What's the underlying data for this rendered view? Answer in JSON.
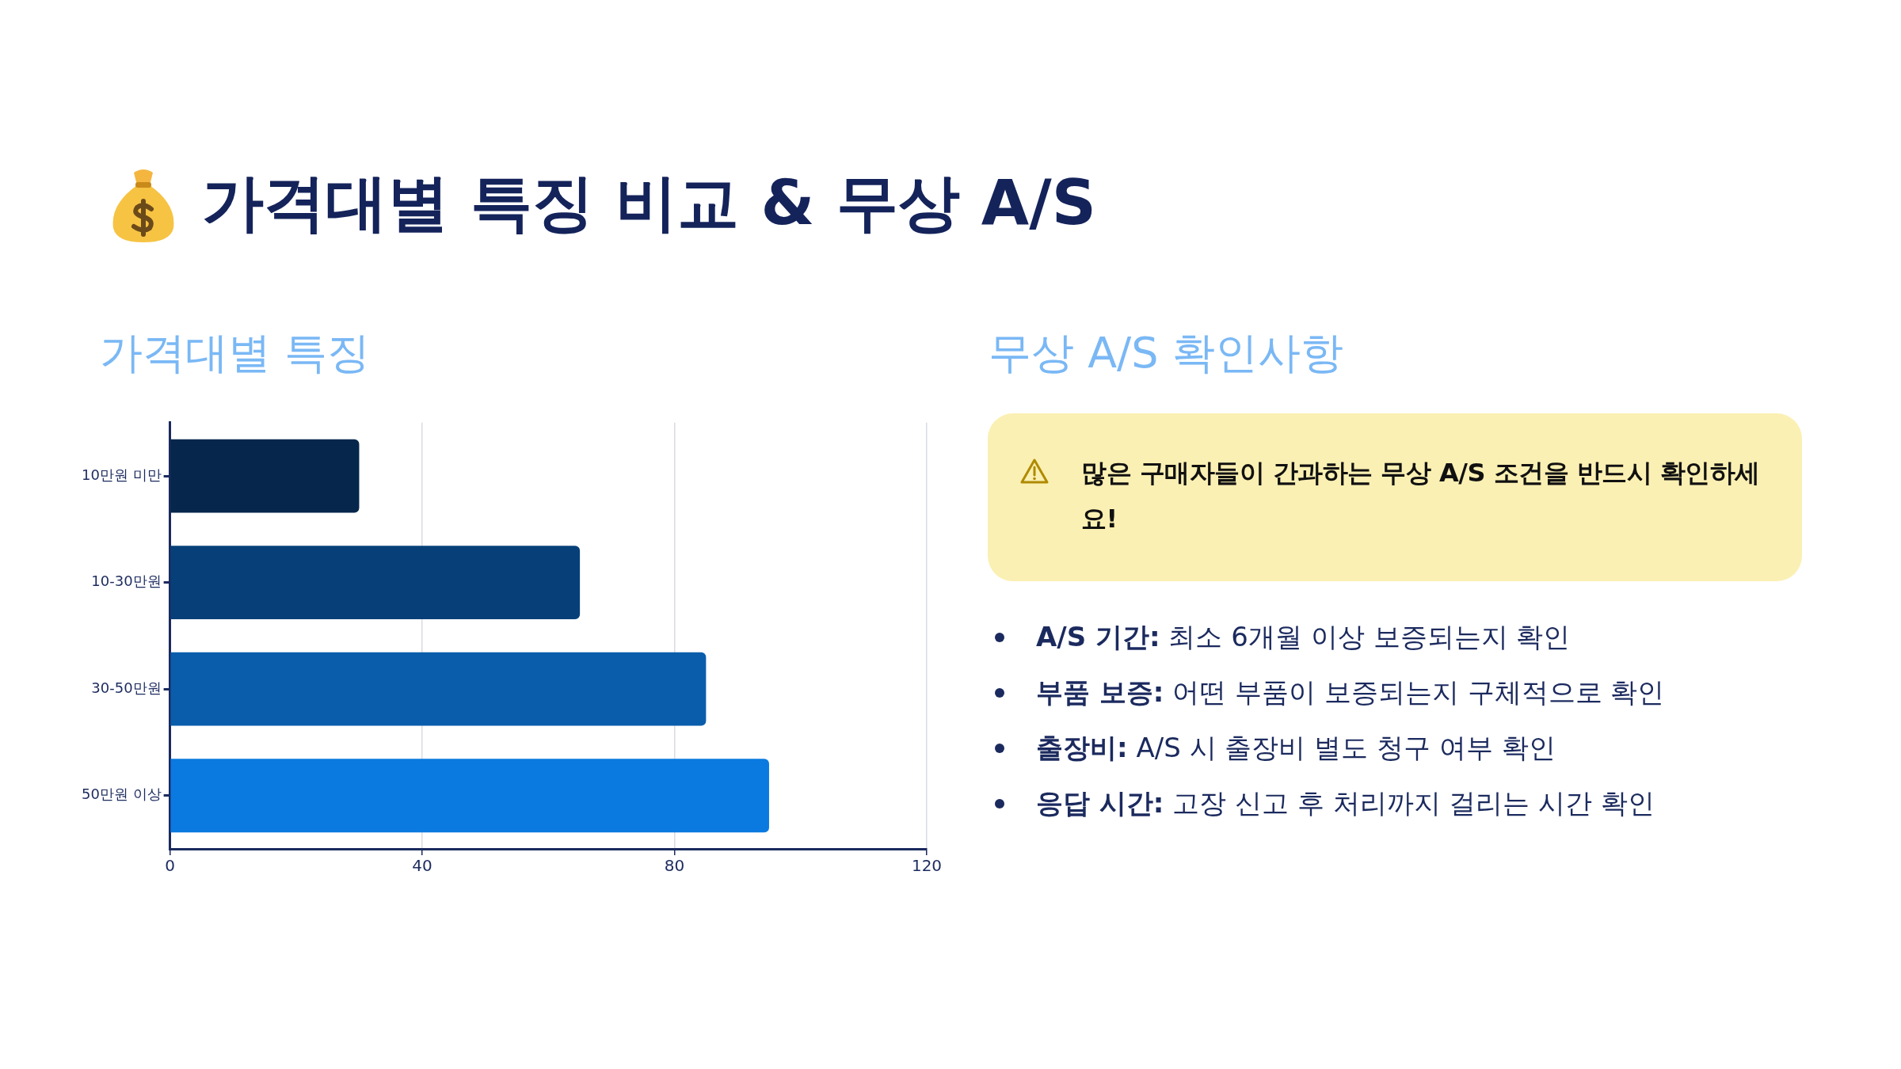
{
  "chart_data": {
    "type": "bar",
    "orientation": "horizontal",
    "title": "가격대별 특징 비교 & 무상 A/S",
    "subtitle": "가격대별 특징",
    "categories": [
      "10만원 미만",
      "10-30만원",
      "30-50만원",
      "50만원 이상"
    ],
    "values": [
      30,
      65,
      85,
      95
    ],
    "colors": [
      "#06274b",
      "#074078",
      "#0a5dab",
      "#0a7ae0"
    ],
    "xlim": [
      0,
      120
    ],
    "xticks": [
      0,
      40,
      80,
      120
    ],
    "grid": "x",
    "legend": false,
    "annotations": [
      "무상 A/S 확인사항",
      "많은 구매자들이 간과하는 무상 A/S 조건을 반드시 확인하세요!",
      "A/S 기간: 최소 6개월 이상 보증되는지 확인",
      "부품 보증: 어떤 부품이 보증되는지 구체적으로 확인",
      "출장비: A/S 시 출장비 별도 청구 여부 확인",
      "응답 시간: 고장 신고 후 처리까지 걸리는 시간 확인"
    ]
  }
}
